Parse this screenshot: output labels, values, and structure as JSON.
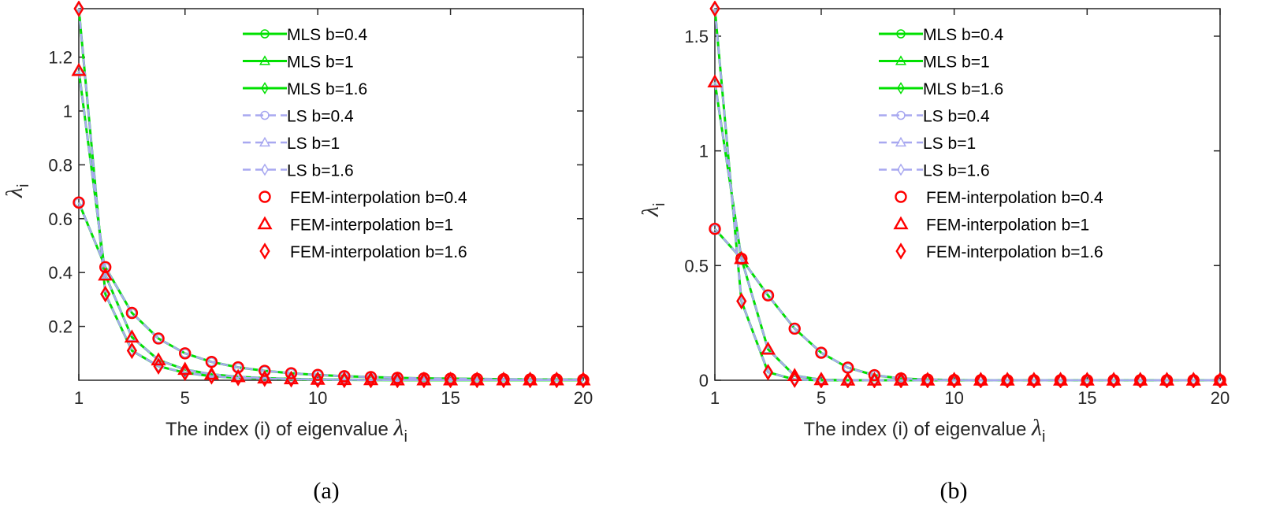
{
  "chart_data": [
    {
      "type": "line",
      "caption": "(a)",
      "xlabel": "The index (i) of eigenvalue λ_i",
      "ylabel": "λ_i",
      "xlim": [
        1,
        20
      ],
      "ylim": [
        0,
        1.38
      ],
      "xticks": [
        1,
        5,
        10,
        15,
        20
      ],
      "yticks": [
        0.2,
        0.4,
        0.6,
        0.8,
        1,
        1.2
      ],
      "grid": false,
      "legend_position": "top-right",
      "x": [
        1,
        2,
        3,
        4,
        5,
        6,
        7,
        8,
        9,
        10,
        11,
        12,
        13,
        14,
        15,
        16,
        17,
        18,
        19,
        20
      ],
      "series": [
        {
          "name": "MLS b=0.4",
          "marker": "circle",
          "style": "solid",
          "color": "#00e000",
          "values": [
            0.66,
            0.42,
            0.25,
            0.155,
            0.1,
            0.068,
            0.048,
            0.035,
            0.026,
            0.02,
            0.015,
            0.012,
            0.009,
            0.007,
            0.006,
            0.005,
            0.004,
            0.003,
            0.003,
            0.002
          ]
        },
        {
          "name": "MLS b=1",
          "marker": "triangle",
          "style": "solid",
          "color": "#00e000",
          "values": [
            1.15,
            0.39,
            0.16,
            0.075,
            0.04,
            0.022,
            0.013,
            0.008,
            0.005,
            0.003,
            0.002,
            0.0015,
            0.001,
            0.001,
            0.001,
            0.001,
            0.001,
            0.001,
            0.001,
            0.001
          ]
        },
        {
          "name": "MLS b=1.6",
          "marker": "diamond",
          "style": "solid",
          "color": "#00e000",
          "values": [
            1.38,
            0.32,
            0.11,
            0.052,
            0.028,
            0.015,
            0.009,
            0.006,
            0.004,
            0.002,
            0.0015,
            0.001,
            0.001,
            0.001,
            0.001,
            0.001,
            0.001,
            0.001,
            0.001,
            0.001
          ]
        },
        {
          "name": "LS b=0.4",
          "marker": "circle",
          "style": "dashed",
          "color": "#a8a8f0",
          "values": [
            0.66,
            0.42,
            0.25,
            0.155,
            0.1,
            0.068,
            0.048,
            0.035,
            0.026,
            0.02,
            0.015,
            0.012,
            0.009,
            0.007,
            0.006,
            0.005,
            0.004,
            0.003,
            0.003,
            0.002
          ]
        },
        {
          "name": "LS b=1",
          "marker": "triangle",
          "style": "dashed",
          "color": "#a8a8f0",
          "values": [
            1.15,
            0.39,
            0.16,
            0.075,
            0.04,
            0.022,
            0.013,
            0.008,
            0.005,
            0.003,
            0.002,
            0.0015,
            0.001,
            0.001,
            0.001,
            0.001,
            0.001,
            0.001,
            0.001,
            0.001
          ]
        },
        {
          "name": "LS b=1.6",
          "marker": "diamond",
          "style": "dashed",
          "color": "#a8a8f0",
          "values": [
            1.38,
            0.32,
            0.11,
            0.052,
            0.028,
            0.015,
            0.009,
            0.006,
            0.004,
            0.002,
            0.0015,
            0.001,
            0.001,
            0.001,
            0.001,
            0.001,
            0.001,
            0.001,
            0.001,
            0.001
          ]
        },
        {
          "name": "FEM-interpolation b=0.4",
          "marker": "circle",
          "style": "none",
          "color": "#ff0000",
          "values": [
            0.66,
            0.42,
            0.25,
            0.155,
            0.1,
            0.068,
            0.048,
            0.035,
            0.026,
            0.02,
            0.015,
            0.012,
            0.009,
            0.007,
            0.006,
            0.005,
            0.004,
            0.003,
            0.003,
            0.002
          ]
        },
        {
          "name": "FEM-interpolation b=1",
          "marker": "triangle",
          "style": "none",
          "color": "#ff0000",
          "values": [
            1.15,
            0.39,
            0.16,
            0.075,
            0.04,
            0.022,
            0.013,
            0.008,
            0.005,
            0.003,
            0.002,
            0.0015,
            0.001,
            0.001,
            0.001,
            0.001,
            0.001,
            0.001,
            0.001,
            0.001
          ]
        },
        {
          "name": "FEM-interpolation b=1.6",
          "marker": "diamond",
          "style": "none",
          "color": "#ff0000",
          "values": [
            1.38,
            0.32,
            0.11,
            0.052,
            0.028,
            0.015,
            0.009,
            0.006,
            0.004,
            0.002,
            0.0015,
            0.001,
            0.001,
            0.001,
            0.001,
            0.001,
            0.001,
            0.001,
            0.001,
            0.001
          ]
        }
      ]
    },
    {
      "type": "line",
      "caption": "(b)",
      "xlabel": "The index (i) of eigenvalue λ_i",
      "ylabel": "λ_i",
      "xlim": [
        1,
        20
      ],
      "ylim": [
        0,
        1.62
      ],
      "xticks": [
        1,
        5,
        10,
        15,
        20
      ],
      "yticks": [
        0,
        0.5,
        1,
        1.5
      ],
      "grid": false,
      "legend_position": "top-right",
      "x": [
        1,
        2,
        3,
        4,
        5,
        6,
        7,
        8,
        9,
        10,
        11,
        12,
        13,
        14,
        15,
        16,
        17,
        18,
        19,
        20
      ],
      "series": [
        {
          "name": "MLS b=0.4",
          "marker": "circle",
          "style": "solid",
          "color": "#00e000",
          "values": [
            0.66,
            0.53,
            0.37,
            0.225,
            0.12,
            0.055,
            0.022,
            0.008,
            0.003,
            0.001,
            0,
            0,
            0,
            0,
            0,
            0,
            0,
            0,
            0,
            0
          ]
        },
        {
          "name": "MLS b=1",
          "marker": "triangle",
          "style": "solid",
          "color": "#00e000",
          "values": [
            1.3,
            0.53,
            0.135,
            0.02,
            0.002,
            0,
            0,
            0,
            0,
            0,
            0,
            0,
            0,
            0,
            0,
            0,
            0,
            0,
            0,
            0
          ]
        },
        {
          "name": "MLS b=1.6",
          "marker": "diamond",
          "style": "solid",
          "color": "#00e000",
          "values": [
            1.62,
            0.345,
            0.035,
            0.003,
            0,
            0,
            0,
            0,
            0,
            0,
            0,
            0,
            0,
            0,
            0,
            0,
            0,
            0,
            0,
            0
          ]
        },
        {
          "name": "LS b=0.4",
          "marker": "circle",
          "style": "dashed",
          "color": "#a8a8f0",
          "values": [
            0.66,
            0.53,
            0.37,
            0.225,
            0.12,
            0.055,
            0.022,
            0.008,
            0.003,
            0.001,
            0,
            0,
            0,
            0,
            0,
            0,
            0,
            0,
            0,
            0
          ]
        },
        {
          "name": "LS b=1",
          "marker": "triangle",
          "style": "dashed",
          "color": "#a8a8f0",
          "values": [
            1.3,
            0.53,
            0.135,
            0.02,
            0.002,
            0,
            0,
            0,
            0,
            0,
            0,
            0,
            0,
            0,
            0,
            0,
            0,
            0,
            0,
            0
          ]
        },
        {
          "name": "LS b=1.6",
          "marker": "diamond",
          "style": "dashed",
          "color": "#a8a8f0",
          "values": [
            1.62,
            0.345,
            0.035,
            0.003,
            0,
            0,
            0,
            0,
            0,
            0,
            0,
            0,
            0,
            0,
            0,
            0,
            0,
            0,
            0,
            0
          ]
        },
        {
          "name": "FEM-interpolation b=0.4",
          "marker": "circle",
          "style": "none",
          "color": "#ff0000",
          "values": [
            0.66,
            0.53,
            0.37,
            0.225,
            0.12,
            0.055,
            0.022,
            0.008,
            0.003,
            0.001,
            0,
            0,
            0,
            0,
            0,
            0,
            0,
            0,
            0,
            0
          ]
        },
        {
          "name": "FEM-interpolation b=1",
          "marker": "triangle",
          "style": "none",
          "color": "#ff0000",
          "values": [
            1.3,
            0.53,
            0.135,
            0.02,
            0.002,
            0,
            0,
            0,
            0,
            0,
            0,
            0,
            0,
            0,
            0,
            0,
            0,
            0,
            0,
            0
          ]
        },
        {
          "name": "FEM-interpolation b=1.6",
          "marker": "diamond",
          "style": "none",
          "color": "#ff0000",
          "values": [
            1.62,
            0.345,
            0.035,
            0.003,
            0,
            0,
            0,
            0,
            0,
            0,
            0,
            0,
            0,
            0,
            0,
            0,
            0,
            0,
            0,
            0
          ]
        }
      ]
    }
  ]
}
